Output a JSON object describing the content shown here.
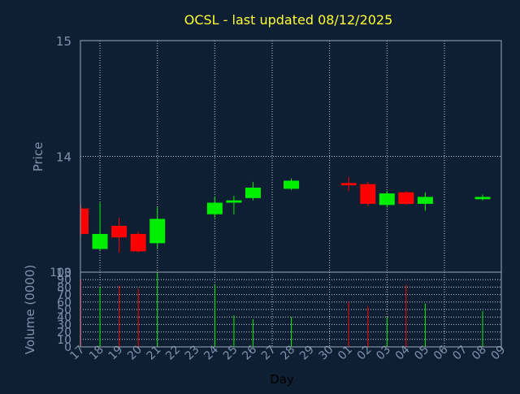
{
  "colors": {
    "background": "#0e1f33",
    "frame": "#9aa7b8",
    "grid": "#c8ccd2",
    "title": "#ffff33",
    "axis_text": "#7f93ad",
    "up": "#00ee00",
    "down": "#ff0000"
  },
  "chart_data": {
    "type": "candlestick",
    "title": "OCSL - last updated 08/12/2025",
    "price_panel": {
      "ylabel": "Price",
      "ylim": [
        13,
        15
      ],
      "ytick_values": [
        13,
        14,
        15
      ],
      "yticks": [
        "13",
        "14",
        "15"
      ],
      "grid": true
    },
    "volume_panel": {
      "ylabel": "Volume (0000)",
      "ylim": [
        0,
        100
      ],
      "ytick_values": [
        0,
        10,
        20,
        30,
        40,
        50,
        60,
        70,
        80,
        90,
        100
      ],
      "yticks": [
        "0",
        "10",
        "20",
        "30",
        "40",
        "50",
        "60",
        "70",
        "80",
        "90",
        "100"
      ],
      "grid": true
    },
    "xlabel": "Day",
    "x_ticks": [
      "17",
      "18",
      "19",
      "20",
      "21",
      "22",
      "23",
      "24",
      "25",
      "26",
      "27",
      "28",
      "29",
      "30",
      "01",
      "02",
      "03",
      "04",
      "05",
      "06",
      "07",
      "08",
      "09"
    ],
    "candles": [
      {
        "day": "17",
        "open": 13.55,
        "high": 13.58,
        "low": 13.32,
        "close": 13.33,
        "volume": 90
      },
      {
        "day": "18",
        "open": 13.2,
        "high": 13.6,
        "low": 13.19,
        "close": 13.33,
        "volume": 80
      },
      {
        "day": "19",
        "open": 13.4,
        "high": 13.47,
        "low": 13.17,
        "close": 13.3,
        "volume": 82
      },
      {
        "day": "20",
        "open": 13.33,
        "high": 13.35,
        "low": 13.17,
        "close": 13.18,
        "volume": 78
      },
      {
        "day": "21",
        "open": 13.25,
        "high": 13.56,
        "low": 13.2,
        "close": 13.46,
        "volume": 100
      },
      {
        "day": "24",
        "open": 13.5,
        "high": 13.65,
        "low": 13.47,
        "close": 13.6,
        "volume": 84
      },
      {
        "day": "25",
        "open": 13.6,
        "high": 13.66,
        "low": 13.5,
        "close": 13.62,
        "volume": 42
      },
      {
        "day": "26",
        "open": 13.64,
        "high": 13.78,
        "low": 13.62,
        "close": 13.73,
        "volume": 37
      },
      {
        "day": "28",
        "open": 13.72,
        "high": 13.81,
        "low": 13.71,
        "close": 13.79,
        "volume": 40
      },
      {
        "day": "01",
        "open": 13.77,
        "high": 13.82,
        "low": 13.7,
        "close": 13.75,
        "volume": 60
      },
      {
        "day": "02",
        "open": 13.76,
        "high": 13.78,
        "low": 13.57,
        "close": 13.59,
        "volume": 54
      },
      {
        "day": "03",
        "open": 13.58,
        "high": 13.7,
        "low": 13.56,
        "close": 13.68,
        "volume": 40
      },
      {
        "day": "04",
        "open": 13.69,
        "high": 13.7,
        "low": 13.58,
        "close": 13.59,
        "volume": 83
      },
      {
        "day": "05",
        "open": 13.59,
        "high": 13.69,
        "low": 13.53,
        "close": 13.65,
        "volume": 58
      },
      {
        "day": "08",
        "open": 13.63,
        "high": 13.67,
        "low": 13.62,
        "close": 13.65,
        "volume": 48
      }
    ]
  }
}
